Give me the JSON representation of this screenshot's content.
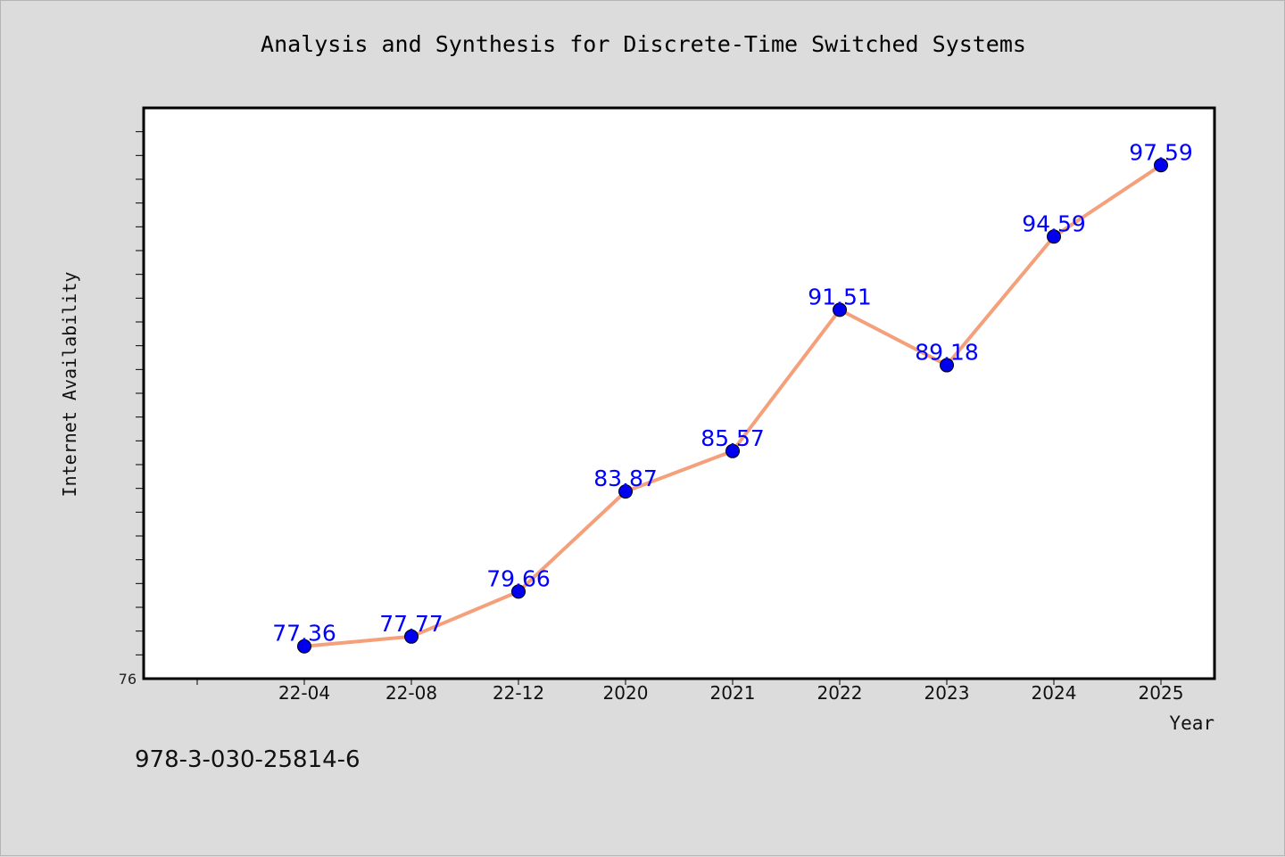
{
  "page": {
    "title": "Analysis and Synthesis for Discrete-Time Switched Systems",
    "footer_text": "978-3-030-25814-6"
  },
  "colors": {
    "background": "#dcdcdc",
    "plot_area": "#ffffff",
    "line": "#f4a07a",
    "marker": "#0000ee",
    "data_label": "#0000ff"
  },
  "chart_data": {
    "type": "line",
    "title": "Analysis and Synthesis for Discrete-Time Switched Systems",
    "xlabel": "Year",
    "ylabel": "Internet Availability",
    "categories": [
      "22-04",
      "22-08",
      "22-12",
      "2020",
      "2021",
      "2022",
      "2023",
      "2024",
      "2025"
    ],
    "values": [
      77.36,
      77.77,
      79.66,
      83.87,
      85.57,
      91.51,
      89.18,
      94.59,
      97.59
    ],
    "data_labels": [
      "77.36",
      "77.77",
      "79.66",
      "83.87",
      "85.57",
      "91.51",
      "89.18",
      "94.59",
      "97.59"
    ],
    "ylim": [
      76,
      100
    ],
    "ytick_labels": [
      "76"
    ],
    "grid": false,
    "legend": "none"
  }
}
